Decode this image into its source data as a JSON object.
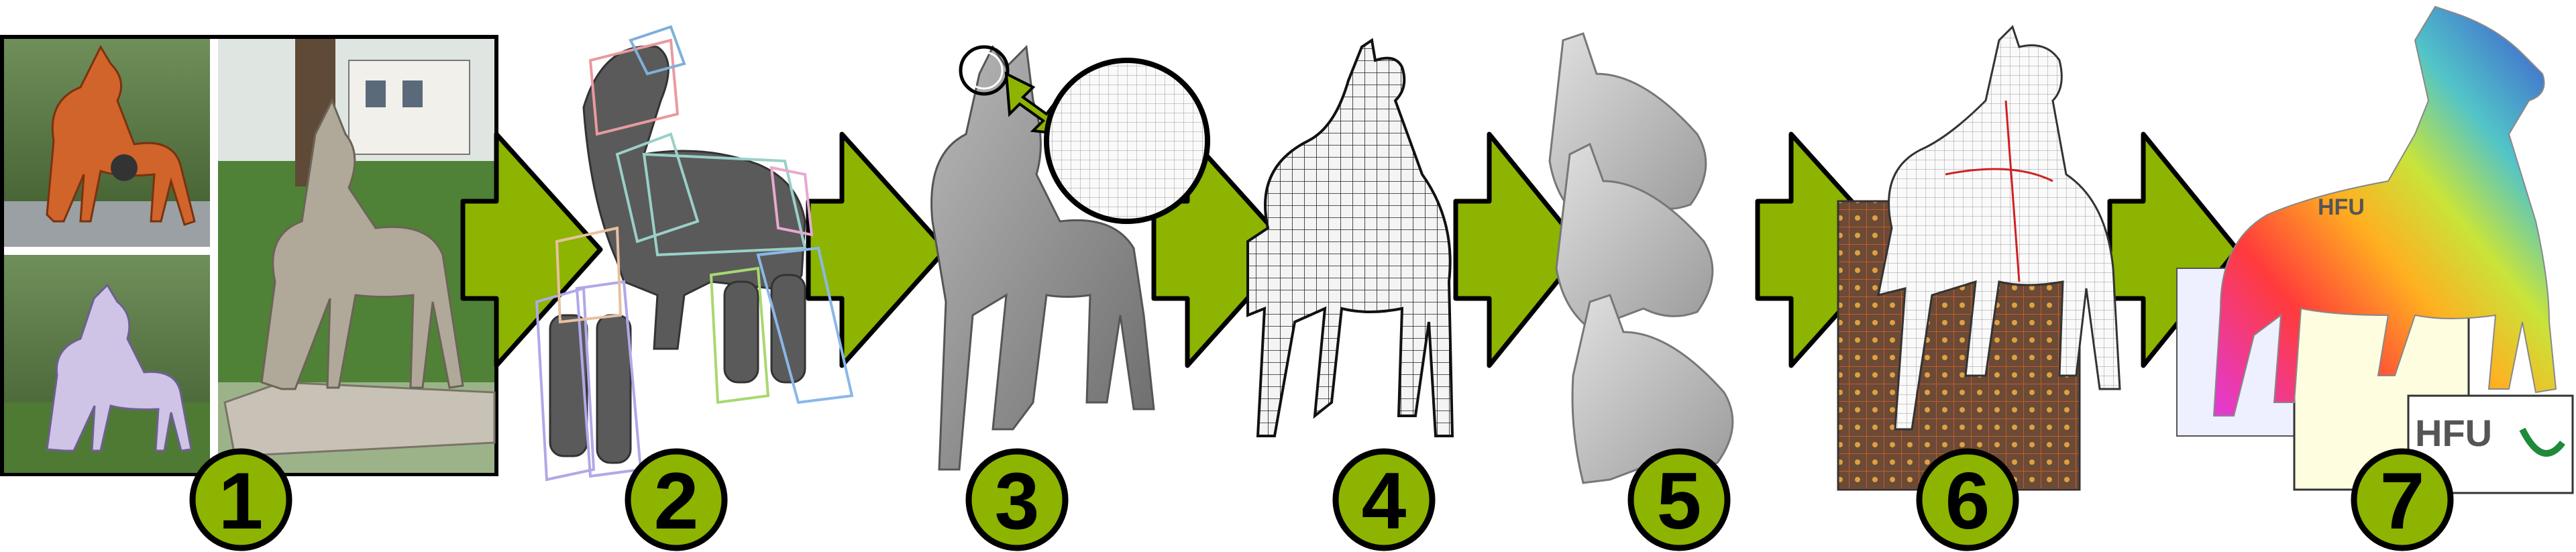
{
  "colors": {
    "arrow_green": "#8cb400",
    "arrow_stroke": "#000000",
    "badge_fill": "#8cb400",
    "badge_stroke": "#000000",
    "mesh_gray": "#8a8a8a",
    "photo_frame": "#000000",
    "hfu_green": "#1f8a3a"
  },
  "steps": [
    {
      "number": "1",
      "icon": "photo-collage-icon"
    },
    {
      "number": "2",
      "icon": "cage-skeleton-icon"
    },
    {
      "number": "3",
      "icon": "smooth-mesh-icon"
    },
    {
      "number": "4",
      "icon": "quad-mesh-icon"
    },
    {
      "number": "5",
      "icon": "head-variants-icon"
    },
    {
      "number": "6",
      "icon": "uv-unwrap-icon"
    },
    {
      "number": "7",
      "icon": "textured-model-icon"
    }
  ],
  "logo": {
    "text": "HFU"
  }
}
